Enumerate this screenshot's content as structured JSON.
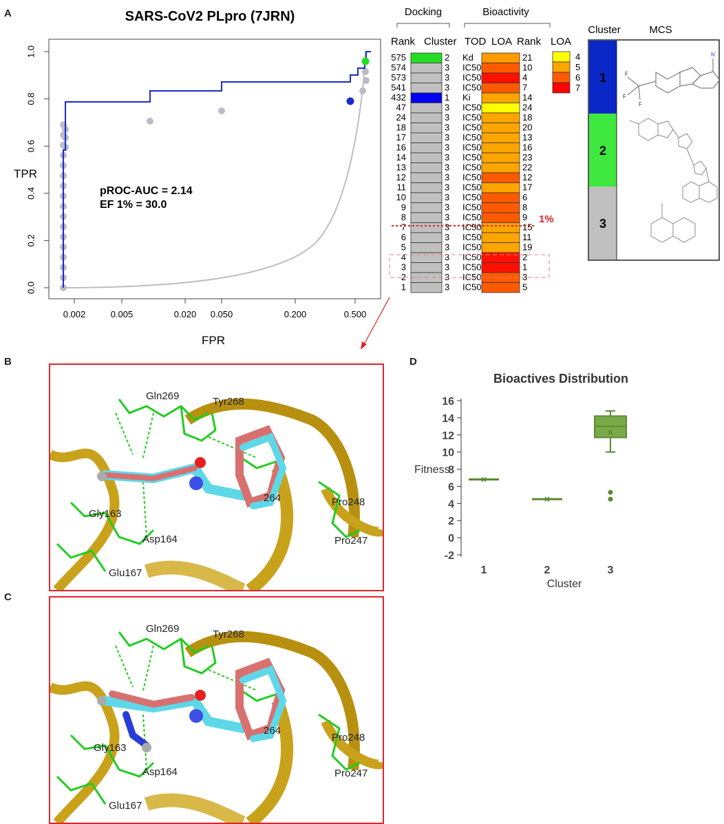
{
  "panels": {
    "a": "A",
    "b": "B",
    "c": "C",
    "d": "D"
  },
  "roc": {
    "title": "SARS-CoV2 PLpro (7JRN)",
    "xlabel": "FPR",
    "ylabel": "TPR",
    "annotation_auc": "pROC-AUC = 2.14",
    "annotation_ef": "EF 1% = 30.0",
    "x_ticks": [
      "0.002",
      "0.005",
      "0.020",
      "0.050",
      "0.200",
      "0.500"
    ],
    "y_ticks": [
      "0.0",
      "0.2",
      "0.4",
      "0.6",
      "0.8",
      "1.0"
    ]
  },
  "table": {
    "group_docking": "Docking",
    "group_bioactivity": "Bioactivity",
    "col_rank": "Rank",
    "col_cluster": "Cluster",
    "col_tod": "TOD",
    "col_loa": "LOA",
    "col_rank2": "Rank",
    "legend_title": "LOA",
    "legend_values": [
      "4",
      "5",
      "6",
      "7"
    ],
    "legend_colors": [
      "#ffff00",
      "#ffa500",
      "#ff5a00",
      "#ff0000"
    ],
    "cutoff_label": "1%",
    "rows": [
      {
        "rank": "575",
        "cluster": "2",
        "tod": "Kd",
        "loa_color": "#ff9a00",
        "rank2": "21",
        "cluster_color": "#22dd22"
      },
      {
        "rank": "574",
        "cluster": "3",
        "tod": "IC50",
        "loa_color": "#ff5a00",
        "rank2": "10",
        "cluster_color": "#c0c0c0"
      },
      {
        "rank": "573",
        "cluster": "3",
        "tod": "IC50",
        "loa_color": "#ff1000",
        "rank2": "4",
        "cluster_color": "#c0c0c0"
      },
      {
        "rank": "541",
        "cluster": "3",
        "tod": "IC50",
        "loa_color": "#ff5a00",
        "rank2": "7",
        "cluster_color": "#c0c0c0"
      },
      {
        "rank": "432",
        "cluster": "1",
        "tod": "Ki",
        "loa_color": "#ffa500",
        "rank2": "14",
        "cluster_color": "#0000ee"
      },
      {
        "rank": "47",
        "cluster": "3",
        "tod": "IC50",
        "loa_color": "#ffff00",
        "rank2": "24",
        "cluster_color": "#c0c0c0"
      },
      {
        "rank": "24",
        "cluster": "3",
        "tod": "IC50",
        "loa_color": "#ffa500",
        "rank2": "18",
        "cluster_color": "#c0c0c0"
      },
      {
        "rank": "18",
        "cluster": "3",
        "tod": "IC50",
        "loa_color": "#ffa500",
        "rank2": "20",
        "cluster_color": "#c0c0c0"
      },
      {
        "rank": "17",
        "cluster": "3",
        "tod": "IC50",
        "loa_color": "#ffa500",
        "rank2": "13",
        "cluster_color": "#c0c0c0"
      },
      {
        "rank": "16",
        "cluster": "3",
        "tod": "IC50",
        "loa_color": "#ffa500",
        "rank2": "16",
        "cluster_color": "#c0c0c0"
      },
      {
        "rank": "14",
        "cluster": "3",
        "tod": "IC50",
        "loa_color": "#ffa500",
        "rank2": "23",
        "cluster_color": "#c0c0c0"
      },
      {
        "rank": "13",
        "cluster": "3",
        "tod": "IC50",
        "loa_color": "#ffa500",
        "rank2": "22",
        "cluster_color": "#c0c0c0"
      },
      {
        "rank": "12",
        "cluster": "3",
        "tod": "IC50",
        "loa_color": "#ff5a00",
        "rank2": "12",
        "cluster_color": "#c0c0c0"
      },
      {
        "rank": "11",
        "cluster": "3",
        "tod": "IC50",
        "loa_color": "#ffa500",
        "rank2": "17",
        "cluster_color": "#c0c0c0"
      },
      {
        "rank": "10",
        "cluster": "3",
        "tod": "IC50",
        "loa_color": "#ff5a00",
        "rank2": "6",
        "cluster_color": "#c0c0c0"
      },
      {
        "rank": "9",
        "cluster": "3",
        "tod": "IC50",
        "loa_color": "#ff5a00",
        "rank2": "8",
        "cluster_color": "#c0c0c0"
      },
      {
        "rank": "8",
        "cluster": "3",
        "tod": "IC50",
        "loa_color": "#ff5a00",
        "rank2": "9",
        "cluster_color": "#c0c0c0"
      },
      {
        "rank": "7",
        "cluster": "3",
        "tod": "IC50",
        "loa_color": "#ffa500",
        "rank2": "15",
        "cluster_color": "#c0c0c0"
      },
      {
        "rank": "6",
        "cluster": "3",
        "tod": "IC50",
        "loa_color": "#ffa500",
        "rank2": "11",
        "cluster_color": "#c0c0c0"
      },
      {
        "rank": "5",
        "cluster": "3",
        "tod": "IC50",
        "loa_color": "#ffa500",
        "rank2": "19",
        "cluster_color": "#c0c0c0"
      },
      {
        "rank": "4",
        "cluster": "3",
        "tod": "IC50",
        "loa_color": "#ff1000",
        "rank2": "2",
        "cluster_color": "#c0c0c0"
      },
      {
        "rank": "3",
        "cluster": "3",
        "tod": "IC50",
        "loa_color": "#ff1000",
        "rank2": "1",
        "cluster_color": "#c0c0c0"
      },
      {
        "rank": "2",
        "cluster": "3",
        "tod": "IC50",
        "loa_color": "#ff5a00",
        "rank2": "3",
        "cluster_color": "#c0c0c0"
      },
      {
        "rank": "1",
        "cluster": "3",
        "tod": "IC50",
        "loa_color": "#ff5a00",
        "rank2": "5",
        "cluster_color": "#c0c0c0"
      }
    ]
  },
  "mcs": {
    "col_cluster": "Cluster",
    "col_mcs": "MCS",
    "clusters": [
      {
        "label": "1",
        "color": "#0a28c8"
      },
      {
        "label": "2",
        "color": "#3ee83e"
      },
      {
        "label": "3",
        "color": "#c0c0c0"
      }
    ],
    "atom_labels": {
      "n": "N",
      "f": "F"
    }
  },
  "molecules": {
    "residues": [
      "Gln269",
      "Tyr268",
      "Gly163",
      "Asp164",
      "Glu167",
      "Pro248",
      "Pro247",
      "264"
    ]
  },
  "chart_data": {
    "type": "box",
    "title": "Bioactives Distribution",
    "xlabel": "Cluster",
    "ylabel": "Fitness",
    "categories": [
      "1",
      "2",
      "3"
    ],
    "y_ticks": [
      "-2",
      "0",
      "2",
      "4",
      "6",
      "8",
      "10",
      "12",
      "14",
      "16"
    ],
    "ylim": [
      -2,
      16
    ],
    "color": "#5a8a32",
    "boxes": [
      {
        "cluster": "1",
        "min": 6.8,
        "q1": 6.8,
        "median": 6.8,
        "q3": 6.8,
        "max": 6.8,
        "mean": 6.8,
        "outliers": []
      },
      {
        "cluster": "2",
        "min": 4.5,
        "q1": 4.5,
        "median": 4.5,
        "q3": 4.5,
        "max": 4.5,
        "mean": 4.5,
        "outliers": []
      },
      {
        "cluster": "3",
        "min": 10.0,
        "q1": 11.7,
        "median": 13.0,
        "q3": 14.2,
        "max": 14.8,
        "mean": 12.3,
        "outliers": [
          5.3,
          4.5
        ]
      }
    ]
  }
}
